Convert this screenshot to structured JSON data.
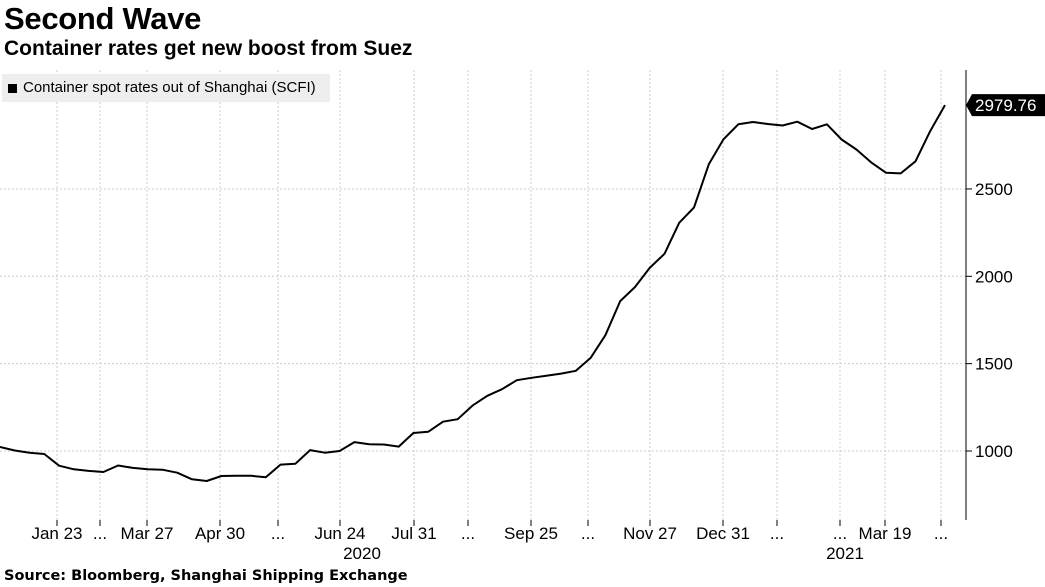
{
  "header": {
    "title": "Second Wave",
    "subtitle": "Container rates get new boost from Suez"
  },
  "footer": {
    "source": "Source: Bloomberg, Shanghai Shipping Exchange"
  },
  "colors": {
    "line": "#000000",
    "grid": "#cccccc",
    "legend_bg": "#eeeeee",
    "last_value_bg": "#000000",
    "last_value_text": "#ffffff"
  },
  "chart_data": {
    "type": "line",
    "title": "Second Wave",
    "subtitle": "Container rates get new boost from Suez",
    "legend": "Container spot rates out of Shanghai (SCFI)",
    "legend_position": "top-left",
    "y_axis_position": "right",
    "grid": true,
    "ylim": [
      650,
      3100
    ],
    "y_ticks": [
      1000,
      1500,
      2000,
      2500
    ],
    "last_value_label": "2979.76",
    "x_tick_labels": [
      "Jan 23",
      "...",
      "Mar 27",
      "Apr 30",
      "...",
      "Jun 24",
      "Jul 31",
      "...",
      "Sep 25",
      "...",
      "Nov 27",
      "Dec 31",
      "...",
      "...",
      "Mar 19",
      "..."
    ],
    "year_labels": [
      "2020",
      "2021"
    ],
    "series": [
      {
        "values": [
          1023,
          1003,
          990,
          983,
          916,
          895,
          886,
          880,
          917,
          903,
          895,
          893,
          876,
          838,
          828,
          857,
          858,
          858,
          850,
          922,
          927,
          1005,
          990,
          1000,
          1051,
          1039,
          1037,
          1025,
          1103,
          1110,
          1168,
          1182,
          1260,
          1316,
          1354,
          1405,
          1419,
          1431,
          1443,
          1459,
          1533,
          1663,
          1858,
          1938,
          2048,
          2129,
          2306,
          2394,
          2641,
          2784,
          2870,
          2883,
          2872,
          2863,
          2885,
          2843,
          2870,
          2783,
          2726,
          2652,
          2593,
          2589,
          2658,
          2831,
          2980
        ]
      }
    ]
  }
}
